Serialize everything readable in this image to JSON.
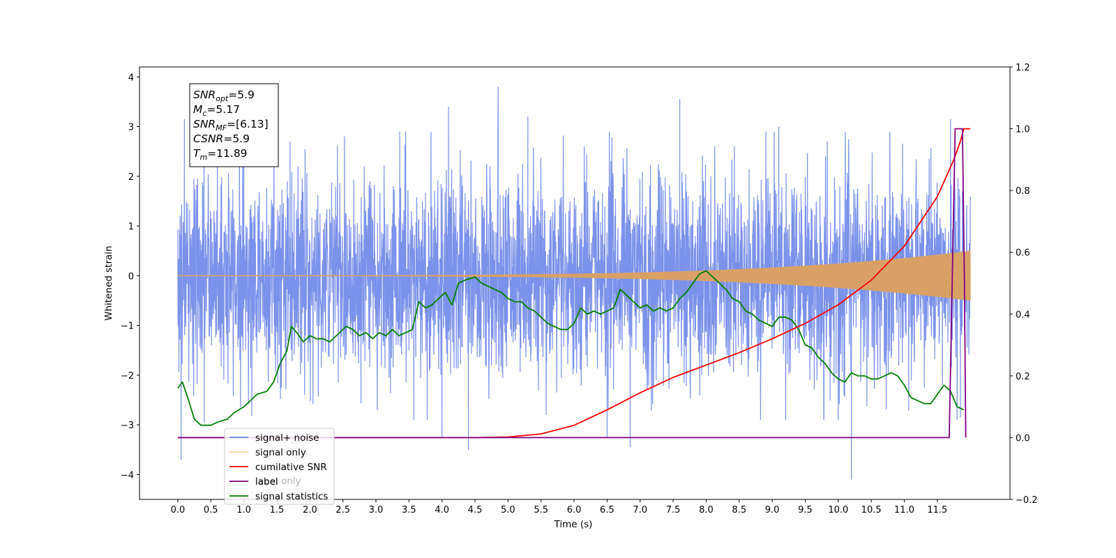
{
  "chart_data": {
    "type": "line",
    "title": "",
    "xlabel": "Time (s)",
    "ylabel": "Whitened strain",
    "xlim": [
      -0.58,
      12.6
    ],
    "ylim_left": [
      -4.5,
      4.2
    ],
    "ylim_right": [
      -0.2,
      1.2
    ],
    "x_ticks": [
      "0.0",
      "0.5",
      "1.0",
      "1.5",
      "2.0",
      "2.5",
      "3.0",
      "3.5",
      "4.0",
      "4.5",
      "5.0",
      "5.5",
      "6.0",
      "6.5",
      "7.0",
      "7.5",
      "8.0",
      "8.5",
      "9.0",
      "9.5",
      "10.0",
      "10.5",
      "11.0",
      "11.5"
    ],
    "y_ticks_left": [
      "4",
      "3",
      "2",
      "1",
      "0",
      "−1",
      "−2",
      "−3",
      "−4"
    ],
    "y_ticks_right": [
      "1.2",
      "1.0",
      "0.8",
      "0.6",
      "0.4",
      "0.2",
      "0.0",
      "−0.2"
    ],
    "grid": false,
    "legend_position": "lower-left",
    "legend": [
      {
        "label": "signal+ noise",
        "color": "#6b86e8"
      },
      {
        "label": "signal only",
        "color": "#f5c36b"
      },
      {
        "label": "cumilative SNR",
        "color": "#ff0000"
      },
      {
        "label": "label",
        "color": "#800080"
      },
      {
        "label": "signal statistics",
        "color": "#008000"
      }
    ],
    "hidden_legend_label": "label only",
    "annotation": [
      {
        "sym": "SNR",
        "sub": "opt",
        "val": "=5.9"
      },
      {
        "sym": "M",
        "sub": "c",
        "val": "=5.17"
      },
      {
        "sym": "SNR",
        "sub": "MF",
        "val": "=[6.13]"
      },
      {
        "sym": "CSNR",
        "sub": "",
        "val": "=5.9"
      },
      {
        "sym": "T",
        "sub": "m",
        "val": "=11.89"
      }
    ],
    "series": [
      {
        "name": "signal+ noise",
        "axis": "left",
        "color": "#6b86e8",
        "x_range": [
          0.0,
          12.0
        ],
        "noise_std": 1.0,
        "peaks": [
          [
            0.05,
            -3.7
          ],
          [
            0.1,
            3.15
          ],
          [
            0.4,
            -2.95
          ],
          [
            0.6,
            2.9
          ],
          [
            1.0,
            3.1
          ],
          [
            1.7,
            2.7
          ],
          [
            4.0,
            -3.25
          ],
          [
            4.1,
            3.4
          ],
          [
            4.4,
            -3.5
          ],
          [
            4.85,
            3.8
          ],
          [
            5.3,
            3.2
          ],
          [
            6.5,
            -3.25
          ],
          [
            6.85,
            -3.45
          ],
          [
            7.6,
            3.55
          ],
          [
            9.1,
            3.0
          ],
          [
            10.2,
            -4.1
          ],
          [
            11.7,
            3.15
          ],
          [
            11.85,
            -2.85
          ]
        ]
      },
      {
        "name": "signal only",
        "axis": "left",
        "color": "#d9a066",
        "x_range": [
          0.0,
          12.0
        ],
        "amp_start": 0.01,
        "amp_end": 0.5,
        "amp_power": 4
      },
      {
        "name": "cumilative SNR",
        "axis": "right",
        "color": "#ff0000",
        "x": [
          0.0,
          4.5,
          5.0,
          5.5,
          6.0,
          6.5,
          7.0,
          7.5,
          8.0,
          8.5,
          9.0,
          9.5,
          10.0,
          10.5,
          11.0,
          11.5,
          11.75,
          11.85,
          11.9,
          12.0
        ],
        "y": [
          0.0,
          0.0,
          0.002,
          0.012,
          0.04,
          0.09,
          0.145,
          0.195,
          0.235,
          0.275,
          0.32,
          0.37,
          0.43,
          0.51,
          0.62,
          0.78,
          0.9,
          0.96,
          1.0,
          1.0
        ]
      },
      {
        "name": "label",
        "axis": "right",
        "color": "#800080",
        "x": [
          0.0,
          11.68,
          11.77,
          11.78,
          11.88,
          11.91,
          11.93
        ],
        "y": [
          0.0,
          0.0,
          1.0,
          1.0,
          1.0,
          0.5,
          0.0
        ]
      },
      {
        "name": "signal statistics",
        "axis": "right",
        "color": "#008000",
        "x": [
          0.0,
          0.07,
          0.15,
          0.25,
          0.35,
          0.5,
          0.6,
          0.75,
          0.85,
          1.0,
          1.1,
          1.2,
          1.35,
          1.45,
          1.55,
          1.65,
          1.72,
          1.8,
          1.9,
          2.0,
          2.1,
          2.2,
          2.3,
          2.45,
          2.55,
          2.65,
          2.75,
          2.85,
          2.95,
          3.05,
          3.15,
          3.25,
          3.35,
          3.45,
          3.55,
          3.65,
          3.75,
          3.85,
          3.95,
          4.05,
          4.15,
          4.25,
          4.35,
          4.5,
          4.6,
          4.7,
          4.8,
          4.9,
          5.0,
          5.1,
          5.2,
          5.3,
          5.4,
          5.5,
          5.6,
          5.7,
          5.8,
          5.9,
          6.0,
          6.1,
          6.2,
          6.3,
          6.4,
          6.5,
          6.6,
          6.7,
          6.8,
          6.9,
          7.0,
          7.1,
          7.2,
          7.3,
          7.4,
          7.5,
          7.6,
          7.7,
          7.8,
          7.9,
          8.0,
          8.1,
          8.2,
          8.3,
          8.4,
          8.5,
          8.6,
          8.7,
          8.8,
          8.9,
          9.0,
          9.1,
          9.2,
          9.3,
          9.4,
          9.5,
          9.6,
          9.7,
          9.8,
          9.9,
          10.0,
          10.1,
          10.2,
          10.3,
          10.4,
          10.5,
          10.6,
          10.7,
          10.8,
          10.9,
          11.0,
          11.1,
          11.2,
          11.3,
          11.4,
          11.5,
          11.6,
          11.7,
          11.8,
          11.9
        ],
        "y": [
          0.16,
          0.18,
          0.13,
          0.06,
          0.04,
          0.04,
          0.05,
          0.06,
          0.08,
          0.1,
          0.12,
          0.14,
          0.15,
          0.18,
          0.24,
          0.28,
          0.36,
          0.34,
          0.31,
          0.33,
          0.32,
          0.32,
          0.31,
          0.34,
          0.36,
          0.35,
          0.33,
          0.34,
          0.32,
          0.34,
          0.33,
          0.35,
          0.33,
          0.34,
          0.35,
          0.44,
          0.42,
          0.43,
          0.45,
          0.47,
          0.43,
          0.5,
          0.51,
          0.52,
          0.5,
          0.49,
          0.48,
          0.47,
          0.45,
          0.44,
          0.44,
          0.42,
          0.41,
          0.39,
          0.37,
          0.36,
          0.35,
          0.35,
          0.37,
          0.42,
          0.4,
          0.41,
          0.4,
          0.41,
          0.42,
          0.48,
          0.46,
          0.44,
          0.42,
          0.43,
          0.41,
          0.42,
          0.41,
          0.42,
          0.45,
          0.47,
          0.5,
          0.53,
          0.54,
          0.52,
          0.5,
          0.48,
          0.45,
          0.44,
          0.41,
          0.4,
          0.38,
          0.37,
          0.36,
          0.39,
          0.39,
          0.38,
          0.35,
          0.3,
          0.29,
          0.26,
          0.24,
          0.21,
          0.19,
          0.18,
          0.21,
          0.2,
          0.2,
          0.19,
          0.19,
          0.2,
          0.21,
          0.2,
          0.17,
          0.13,
          0.12,
          0.11,
          0.11,
          0.14,
          0.17,
          0.15,
          0.1,
          0.09
        ]
      }
    ]
  }
}
